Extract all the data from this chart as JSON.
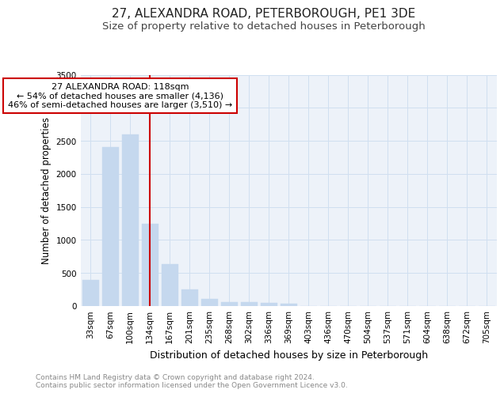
{
  "title": "27, ALEXANDRA ROAD, PETERBOROUGH, PE1 3DE",
  "subtitle": "Size of property relative to detached houses in Peterborough",
  "xlabel": "Distribution of detached houses by size in Peterborough",
  "ylabel": "Number of detached properties",
  "categories": [
    "33sqm",
    "67sqm",
    "100sqm",
    "134sqm",
    "167sqm",
    "201sqm",
    "235sqm",
    "268sqm",
    "302sqm",
    "336sqm",
    "369sqm",
    "403sqm",
    "436sqm",
    "470sqm",
    "504sqm",
    "537sqm",
    "571sqm",
    "604sqm",
    "638sqm",
    "672sqm",
    "705sqm"
  ],
  "values": [
    390,
    2400,
    2600,
    1250,
    640,
    250,
    105,
    60,
    55,
    45,
    35,
    0,
    0,
    0,
    0,
    0,
    0,
    0,
    0,
    0,
    0
  ],
  "bar_color": "#c5d8ee",
  "bar_edgecolor": "#c5d8ee",
  "grid_color": "#d0dff0",
  "bg_color": "#edf2f9",
  "vline_color": "#cc0000",
  "annotation_text": "27 ALEXANDRA ROAD: 118sqm\n← 54% of detached houses are smaller (4,136)\n46% of semi-detached houses are larger (3,510) →",
  "annotation_box_edgecolor": "#cc0000",
  "ylim": [
    0,
    3500
  ],
  "yticks": [
    0,
    500,
    1000,
    1500,
    2000,
    2500,
    3000,
    3500
  ],
  "footer_text": "Contains HM Land Registry data © Crown copyright and database right 2024.\nContains public sector information licensed under the Open Government Licence v3.0.",
  "title_fontsize": 11,
  "subtitle_fontsize": 9.5,
  "xlabel_fontsize": 9,
  "ylabel_fontsize": 8.5,
  "tick_fontsize": 7.5,
  "footer_fontsize": 6.5
}
